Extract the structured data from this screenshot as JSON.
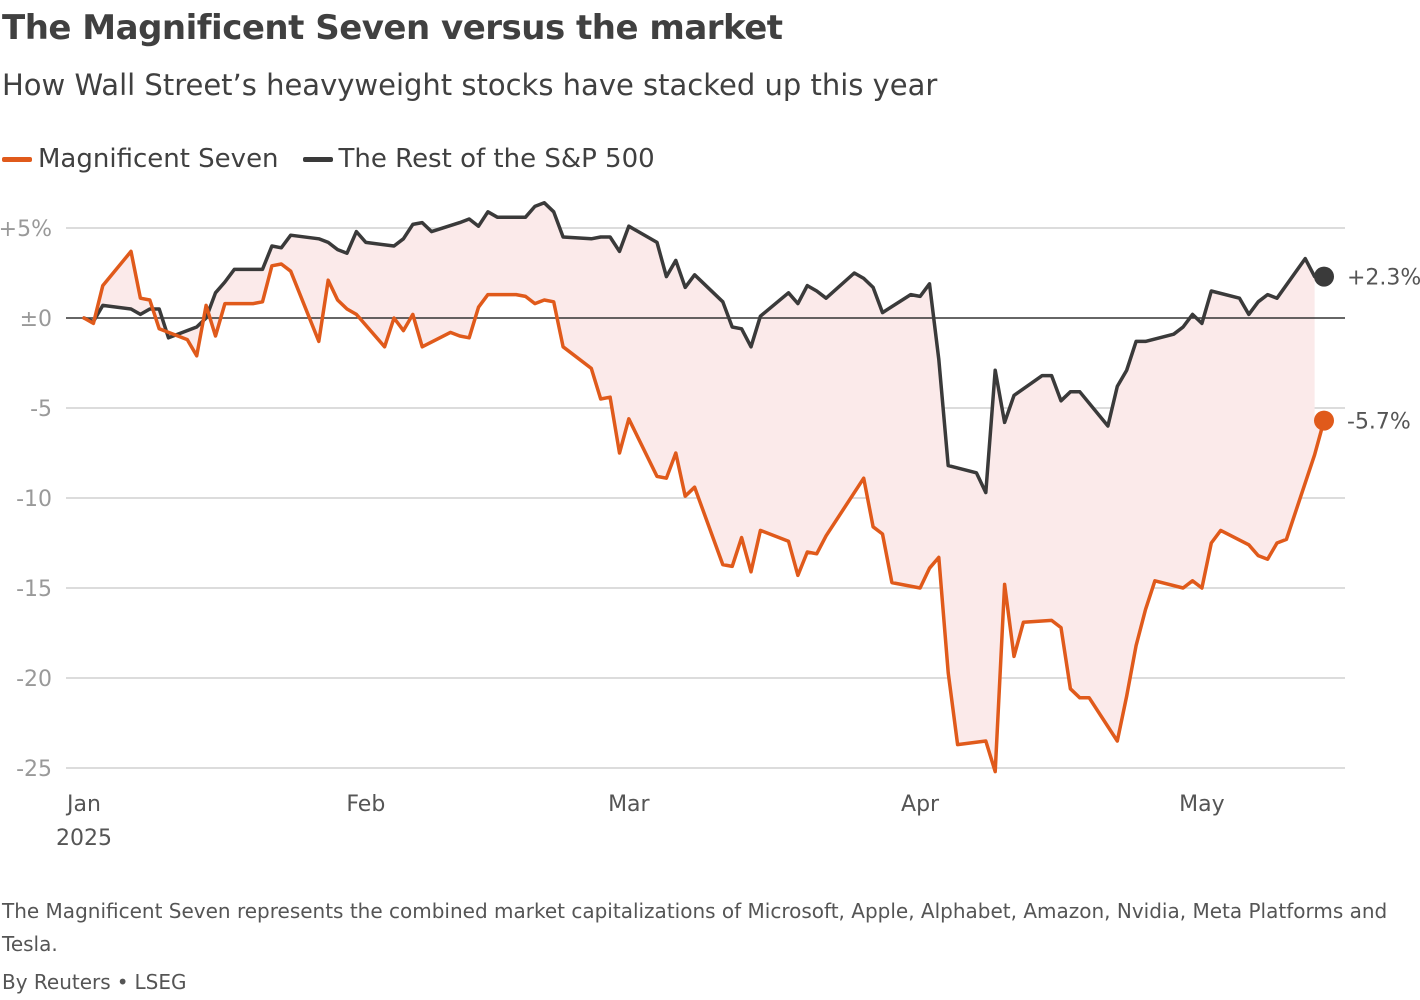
{
  "header": {
    "title": "The Magnificent Seven versus the market",
    "subtitle": "How Wall Street’s heavyweight stocks have stacked up this year"
  },
  "footer": {
    "note": "The Magnificent Seven represents the combined market capitalizations of Microsoft, Apple, Alphabet, Amazon, Nvidia, Meta Platforms and Tesla.",
    "source_by": "By Reuters",
    "source_separator": "•",
    "source_data": "LSEG"
  },
  "colors": {
    "magnificent_seven": "#e05a1b",
    "rest_of_sp500": "#3a3a3a",
    "fill_between": "#fbeaea",
    "grid": "#d0d0d0",
    "zero_line": "#333333",
    "axis_text": "#999999"
  },
  "chart_data": {
    "type": "line",
    "ylim": [
      -26,
      6
    ],
    "y_ticks": [
      5,
      0,
      -5,
      -10,
      -15,
      -20,
      -25
    ],
    "y_tick_labels": [
      "+5%",
      "±0",
      "-5",
      "-10",
      "-15",
      "-20",
      "-25"
    ],
    "x_range": [
      "2025-01-01",
      "2025-05-14"
    ],
    "x_ticks": [
      {
        "date": "2025-01-01",
        "label": "Jan",
        "sublabel": "2025"
      },
      {
        "date": "2025-02-01",
        "label": "Feb",
        "sublabel": ""
      },
      {
        "date": "2025-03-01",
        "label": "Mar",
        "sublabel": ""
      },
      {
        "date": "2025-04-01",
        "label": "Apr",
        "sublabel": ""
      },
      {
        "date": "2025-05-01",
        "label": "May",
        "sublabel": ""
      }
    ],
    "grid": true,
    "fill_between_series": true,
    "legend_position": "top-left",
    "series": [
      {
        "name": "Magnificent Seven",
        "end_label": "-5.7%",
        "points": [
          [
            "2025-01-02",
            0.0
          ],
          [
            "2025-01-03",
            -0.3
          ],
          [
            "2025-01-04",
            1.8
          ],
          [
            "2025-01-07",
            3.7
          ],
          [
            "2025-01-08",
            1.1
          ],
          [
            "2025-01-09",
            1.0
          ],
          [
            "2025-01-10",
            -0.6
          ],
          [
            "2025-01-13",
            -1.2
          ],
          [
            "2025-01-14",
            -2.1
          ],
          [
            "2025-01-15",
            0.7
          ],
          [
            "2025-01-16",
            -1.0
          ],
          [
            "2025-01-17",
            0.8
          ],
          [
            "2025-01-20",
            0.8
          ],
          [
            "2025-01-21",
            0.9
          ],
          [
            "2025-01-22",
            2.9
          ],
          [
            "2025-01-23",
            3.0
          ],
          [
            "2025-01-24",
            2.6
          ],
          [
            "2025-01-27",
            -1.3
          ],
          [
            "2025-01-28",
            2.1
          ],
          [
            "2025-01-29",
            1.0
          ],
          [
            "2025-01-30",
            0.5
          ],
          [
            "2025-01-31",
            0.2
          ],
          [
            "2025-02-03",
            -1.6
          ],
          [
            "2025-02-04",
            0.0
          ],
          [
            "2025-02-05",
            -0.7
          ],
          [
            "2025-02-06",
            0.2
          ],
          [
            "2025-02-07",
            -1.6
          ],
          [
            "2025-02-10",
            -0.8
          ],
          [
            "2025-02-11",
            -1.0
          ],
          [
            "2025-02-12",
            -1.1
          ],
          [
            "2025-02-13",
            0.6
          ],
          [
            "2025-02-14",
            1.3
          ],
          [
            "2025-02-17",
            1.3
          ],
          [
            "2025-02-18",
            1.2
          ],
          [
            "2025-02-19",
            0.8
          ],
          [
            "2025-02-20",
            1.0
          ],
          [
            "2025-02-21",
            0.9
          ],
          [
            "2025-02-22",
            -1.6
          ],
          [
            "2025-02-25",
            -2.8
          ],
          [
            "2025-02-26",
            -4.5
          ],
          [
            "2025-02-27",
            -4.4
          ],
          [
            "2025-02-28",
            -7.5
          ],
          [
            "2025-03-01",
            -5.6
          ],
          [
            "2025-03-04",
            -8.8
          ],
          [
            "2025-03-05",
            -8.9
          ],
          [
            "2025-03-06",
            -7.5
          ],
          [
            "2025-03-07",
            -9.9
          ],
          [
            "2025-03-08",
            -9.4
          ],
          [
            "2025-03-11",
            -13.7
          ],
          [
            "2025-03-12",
            -13.8
          ],
          [
            "2025-03-13",
            -12.2
          ],
          [
            "2025-03-14",
            -14.1
          ],
          [
            "2025-03-15",
            -11.8
          ],
          [
            "2025-03-18",
            -12.4
          ],
          [
            "2025-03-19",
            -14.3
          ],
          [
            "2025-03-20",
            -13.0
          ],
          [
            "2025-03-21",
            -13.1
          ],
          [
            "2025-03-22",
            -12.1
          ],
          [
            "2025-03-26",
            -8.9
          ],
          [
            "2025-03-27",
            -11.6
          ],
          [
            "2025-03-28",
            -12.0
          ],
          [
            "2025-03-29",
            -14.7
          ],
          [
            "2025-04-01",
            -15.0
          ],
          [
            "2025-04-02",
            -13.9
          ],
          [
            "2025-04-03",
            -13.3
          ],
          [
            "2025-04-04",
            -19.7
          ],
          [
            "2025-04-05",
            -23.7
          ],
          [
            "2025-04-08",
            -23.5
          ],
          [
            "2025-04-09",
            -25.2
          ],
          [
            "2025-04-10",
            -14.8
          ],
          [
            "2025-04-11",
            -18.8
          ],
          [
            "2025-04-12",
            -16.9
          ],
          [
            "2025-04-15",
            -16.8
          ],
          [
            "2025-04-16",
            -17.2
          ],
          [
            "2025-04-17",
            -20.6
          ],
          [
            "2025-04-18",
            -21.1
          ],
          [
            "2025-04-19",
            -21.1
          ],
          [
            "2025-04-22",
            -23.5
          ],
          [
            "2025-04-23",
            -21.0
          ],
          [
            "2025-04-24",
            -18.2
          ],
          [
            "2025-04-25",
            -16.2
          ],
          [
            "2025-04-26",
            -14.6
          ],
          [
            "2025-04-29",
            -15.0
          ],
          [
            "2025-04-30",
            -14.6
          ],
          [
            "2025-05-01",
            -15.0
          ],
          [
            "2025-05-02",
            -12.5
          ],
          [
            "2025-05-03",
            -11.8
          ],
          [
            "2025-05-06",
            -12.6
          ],
          [
            "2025-05-07",
            -13.2
          ],
          [
            "2025-05-08",
            -13.4
          ],
          [
            "2025-05-09",
            -12.5
          ],
          [
            "2025-05-10",
            -12.3
          ],
          [
            "2025-05-13",
            -7.6
          ],
          [
            "2025-05-14",
            -5.7
          ]
        ]
      },
      {
        "name": "The Rest of the S&P 500",
        "end_label": "+2.3%",
        "points": [
          [
            "2025-01-02",
            0.0
          ],
          [
            "2025-01-03",
            -0.2
          ],
          [
            "2025-01-04",
            0.7
          ],
          [
            "2025-01-07",
            0.5
          ],
          [
            "2025-01-08",
            0.2
          ],
          [
            "2025-01-09",
            0.5
          ],
          [
            "2025-01-10",
            0.5
          ],
          [
            "2025-01-11",
            -1.1
          ],
          [
            "2025-01-14",
            -0.5
          ],
          [
            "2025-01-15",
            0.0
          ],
          [
            "2025-01-16",
            1.4
          ],
          [
            "2025-01-17",
            2.0
          ],
          [
            "2025-01-18",
            2.7
          ],
          [
            "2025-01-21",
            2.7
          ],
          [
            "2025-01-22",
            4.0
          ],
          [
            "2025-01-23",
            3.9
          ],
          [
            "2025-01-24",
            4.6
          ],
          [
            "2025-01-27",
            4.4
          ],
          [
            "2025-01-28",
            4.2
          ],
          [
            "2025-01-29",
            3.8
          ],
          [
            "2025-01-30",
            3.6
          ],
          [
            "2025-01-31",
            4.8
          ],
          [
            "2025-02-01",
            4.2
          ],
          [
            "2025-02-04",
            4.0
          ],
          [
            "2025-02-05",
            4.4
          ],
          [
            "2025-02-06",
            5.2
          ],
          [
            "2025-02-07",
            5.3
          ],
          [
            "2025-02-08",
            4.8
          ],
          [
            "2025-02-11",
            5.3
          ],
          [
            "2025-02-12",
            5.5
          ],
          [
            "2025-02-13",
            5.1
          ],
          [
            "2025-02-14",
            5.9
          ],
          [
            "2025-02-15",
            5.6
          ],
          [
            "2025-02-18",
            5.6
          ],
          [
            "2025-02-19",
            6.2
          ],
          [
            "2025-02-20",
            6.4
          ],
          [
            "2025-02-21",
            5.9
          ],
          [
            "2025-02-22",
            4.5
          ],
          [
            "2025-02-25",
            4.4
          ],
          [
            "2025-02-26",
            4.5
          ],
          [
            "2025-02-27",
            4.5
          ],
          [
            "2025-02-28",
            3.7
          ],
          [
            "2025-03-01",
            5.1
          ],
          [
            "2025-03-04",
            4.2
          ],
          [
            "2025-03-05",
            2.3
          ],
          [
            "2025-03-06",
            3.2
          ],
          [
            "2025-03-07",
            1.7
          ],
          [
            "2025-03-08",
            2.4
          ],
          [
            "2025-03-11",
            0.9
          ],
          [
            "2025-03-12",
            -0.5
          ],
          [
            "2025-03-13",
            -0.6
          ],
          [
            "2025-03-14",
            -1.6
          ],
          [
            "2025-03-15",
            0.1
          ],
          [
            "2025-03-18",
            1.4
          ],
          [
            "2025-03-19",
            0.8
          ],
          [
            "2025-03-20",
            1.8
          ],
          [
            "2025-03-21",
            1.5
          ],
          [
            "2025-03-22",
            1.1
          ],
          [
            "2025-03-25",
            2.5
          ],
          [
            "2025-03-26",
            2.2
          ],
          [
            "2025-03-27",
            1.7
          ],
          [
            "2025-03-28",
            0.3
          ],
          [
            "2025-03-31",
            1.3
          ],
          [
            "2025-04-01",
            1.2
          ],
          [
            "2025-04-02",
            1.9
          ],
          [
            "2025-04-03",
            -2.3
          ],
          [
            "2025-04-04",
            -8.2
          ],
          [
            "2025-04-07",
            -8.6
          ],
          [
            "2025-04-08",
            -9.7
          ],
          [
            "2025-04-09",
            -2.9
          ],
          [
            "2025-04-10",
            -5.8
          ],
          [
            "2025-04-11",
            -4.3
          ],
          [
            "2025-04-14",
            -3.2
          ],
          [
            "2025-04-15",
            -3.2
          ],
          [
            "2025-04-16",
            -4.6
          ],
          [
            "2025-04-17",
            -4.1
          ],
          [
            "2025-04-18",
            -4.1
          ],
          [
            "2025-04-21",
            -6.0
          ],
          [
            "2025-04-22",
            -3.8
          ],
          [
            "2025-04-23",
            -2.9
          ],
          [
            "2025-04-24",
            -1.3
          ],
          [
            "2025-04-25",
            -1.3
          ],
          [
            "2025-04-28",
            -0.9
          ],
          [
            "2025-04-29",
            -0.5
          ],
          [
            "2025-04-30",
            0.2
          ],
          [
            "2025-05-01",
            -0.3
          ],
          [
            "2025-05-02",
            1.5
          ],
          [
            "2025-05-05",
            1.1
          ],
          [
            "2025-05-06",
            0.2
          ],
          [
            "2025-05-07",
            0.9
          ],
          [
            "2025-05-08",
            1.3
          ],
          [
            "2025-05-09",
            1.1
          ],
          [
            "2025-05-12",
            3.3
          ],
          [
            "2025-05-13",
            2.3
          ]
        ]
      }
    ]
  }
}
